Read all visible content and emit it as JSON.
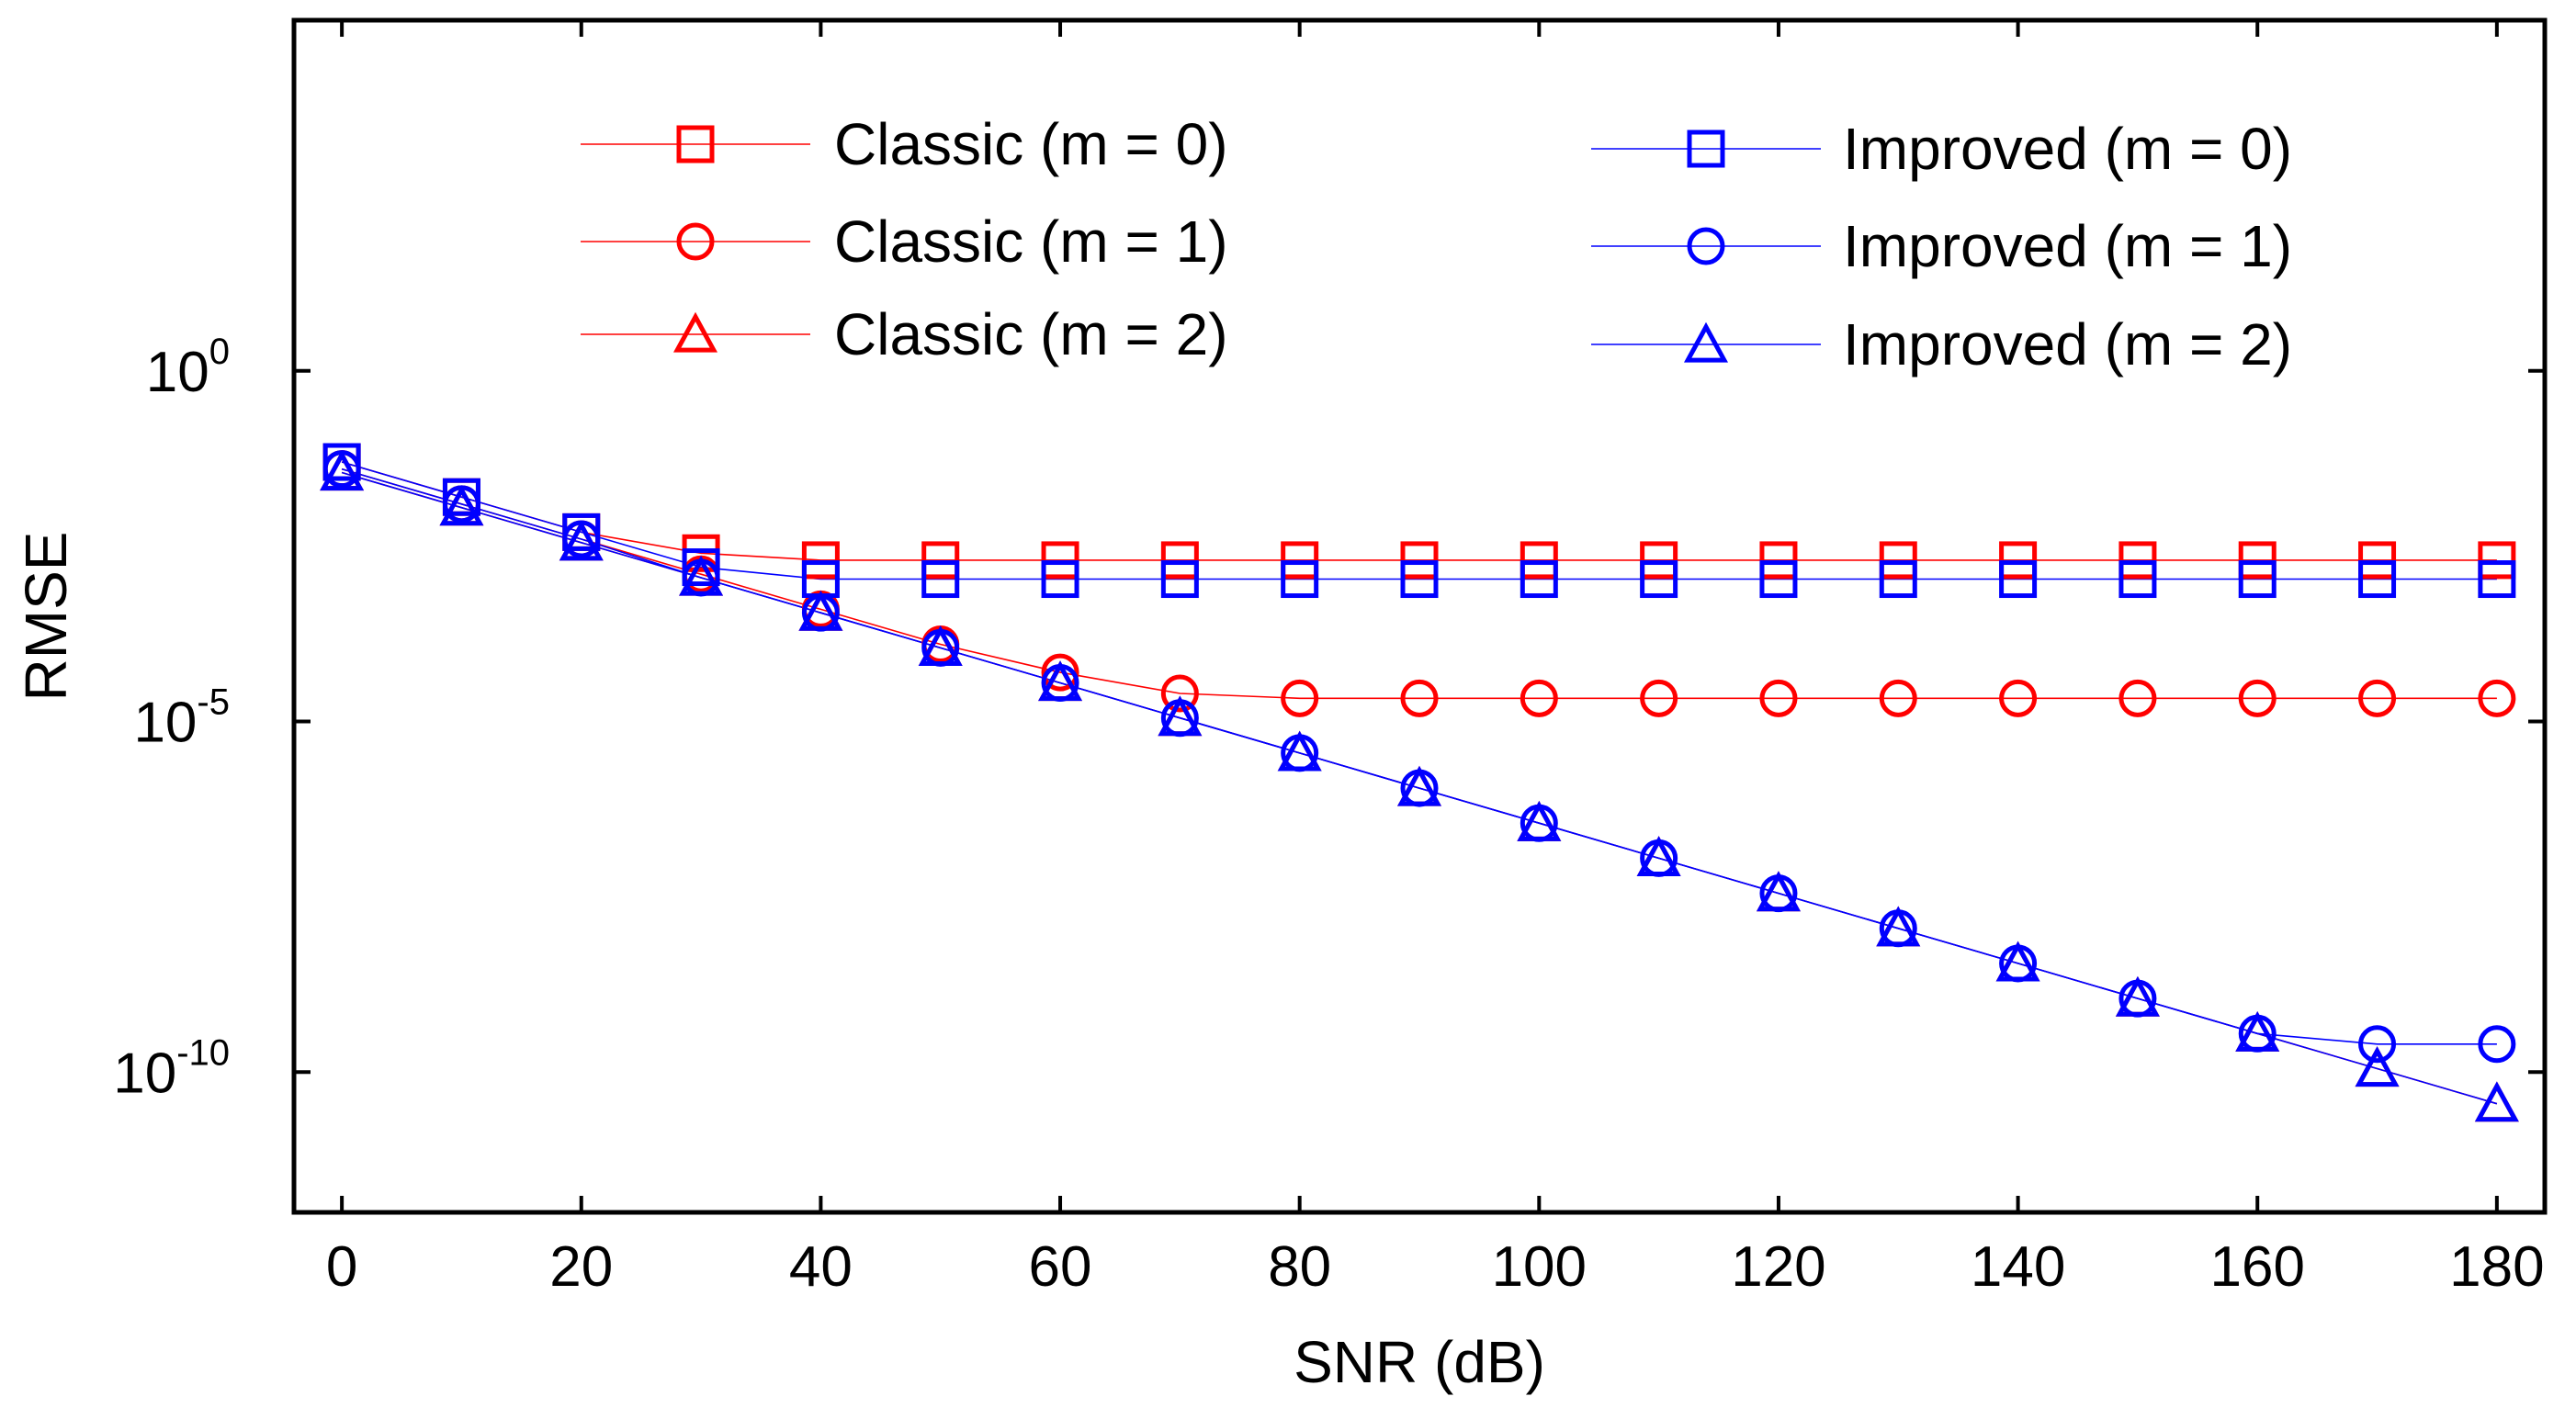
{
  "chart_data": {
    "type": "line",
    "title": "",
    "xlabel": "SNR (dB)",
    "ylabel": "RMSE",
    "xlim": [
      -4,
      184
    ],
    "ylim_log10": [
      -12,
      5
    ],
    "yscale": "log",
    "x_ticks": [
      0,
      20,
      40,
      60,
      80,
      100,
      120,
      140,
      160,
      180
    ],
    "x_tick_labels": [
      "0",
      "20",
      "40",
      "60",
      "80",
      "100",
      "120",
      "140",
      "160",
      "180"
    ],
    "y_ticks_log10": [
      0,
      -5,
      -10
    ],
    "y_tick_labels": [
      {
        "base": "10",
        "exp": "0"
      },
      {
        "base": "10",
        "exp": "-5"
      },
      {
        "base": "10",
        "exp": "-10"
      }
    ],
    "legend_placement": "top",
    "x": [
      0,
      10,
      20,
      30,
      40,
      50,
      60,
      70,
      80,
      90,
      100,
      110,
      120,
      130,
      140,
      150,
      160,
      170,
      180
    ],
    "series": [
      {
        "name": "Classic (m = 0)",
        "color": "#ff0000",
        "marker": "square",
        "log10_values": [
          -1.3,
          -1.8,
          -2.3,
          -2.6,
          -2.7,
          -2.7,
          -2.7,
          -2.7,
          -2.7,
          -2.7,
          -2.7,
          -2.7,
          -2.7,
          -2.7,
          -2.7,
          -2.7,
          -2.7,
          -2.7,
          -2.7
        ]
      },
      {
        "name": "Classic (m = 1)",
        "color": "#ff0000",
        "marker": "circle",
        "log10_values": [
          -1.4,
          -1.9,
          -2.4,
          -2.9,
          -3.4,
          -3.9,
          -4.3,
          -4.6,
          -4.67,
          -4.67,
          -4.67,
          -4.67,
          -4.67,
          -4.67,
          -4.67,
          -4.67,
          -4.67,
          -4.67,
          -4.67
        ]
      },
      {
        "name": "Classic (m = 2)",
        "color": "#ff0000",
        "marker": "triangle",
        "log10_values": [
          -1.45,
          -1.95,
          -2.45,
          -2.95,
          -3.45,
          -3.95,
          -4.45,
          -4.95,
          -5.45,
          -5.95,
          -6.45,
          -6.95,
          -7.45,
          -7.95,
          -8.45,
          -8.95,
          -9.45,
          -9.95,
          -10.45
        ]
      },
      {
        "name": "Improved (m = 0)",
        "color": "#0000ff",
        "marker": "square",
        "log10_values": [
          -1.3,
          -1.8,
          -2.3,
          -2.8,
          -2.97,
          -2.97,
          -2.97,
          -2.97,
          -2.97,
          -2.97,
          -2.97,
          -2.97,
          -2.97,
          -2.97,
          -2.97,
          -2.97,
          -2.97,
          -2.97,
          -2.97
        ]
      },
      {
        "name": "Improved (m = 1)",
        "color": "#0000ff",
        "marker": "circle",
        "log10_values": [
          -1.4,
          -1.9,
          -2.4,
          -2.95,
          -3.45,
          -3.95,
          -4.45,
          -4.95,
          -5.45,
          -5.95,
          -6.45,
          -6.95,
          -7.45,
          -7.95,
          -8.45,
          -8.95,
          -9.45,
          -9.6,
          -9.6
        ]
      },
      {
        "name": "Improved (m = 2)",
        "color": "#0000ff",
        "marker": "triangle",
        "log10_values": [
          -1.45,
          -1.95,
          -2.45,
          -2.95,
          -3.45,
          -3.95,
          -4.45,
          -4.95,
          -5.45,
          -5.95,
          -6.45,
          -6.95,
          -7.45,
          -7.95,
          -8.45,
          -8.95,
          -9.45,
          -9.95,
          -10.45
        ]
      }
    ]
  }
}
